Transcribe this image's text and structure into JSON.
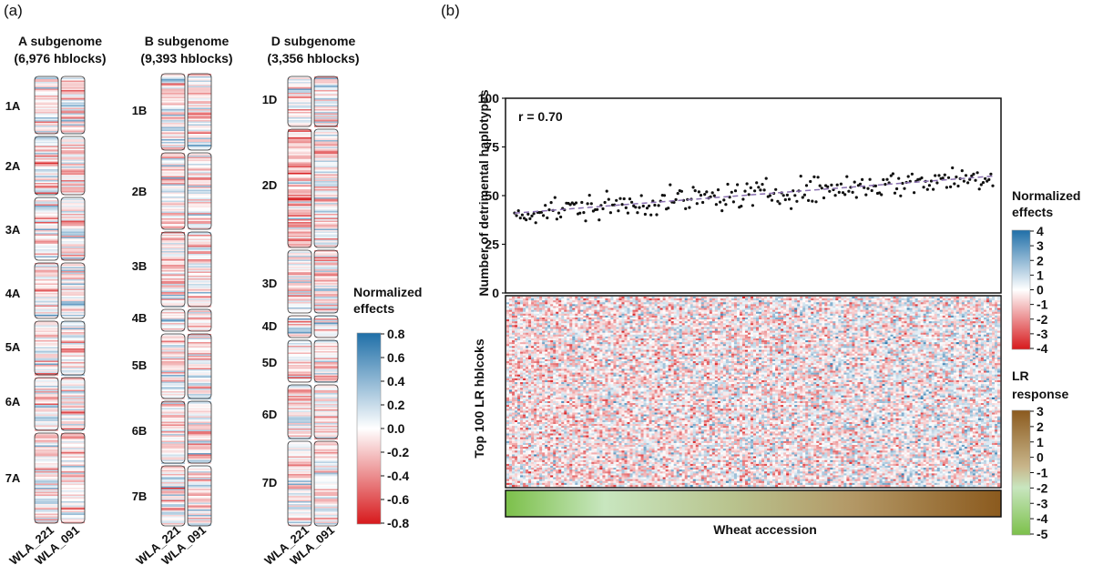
{
  "panel_a": {
    "label": "(a)",
    "subgenomes": [
      {
        "name": "A subgenome",
        "count": "(6,976 hblocks)",
        "chromosomes": [
          "1A",
          "2A",
          "3A",
          "4A",
          "5A",
          "6A",
          "7A"
        ]
      },
      {
        "name": "B subgenome",
        "count": "(9,393 hblocks)",
        "chromosomes": [
          "1B",
          "2B",
          "3B",
          "4B",
          "5B",
          "6B",
          "7B"
        ]
      },
      {
        "name": "D subgenome",
        "count": "(3,356 hblocks)",
        "chromosomes": [
          "1D",
          "2D",
          "3D",
          "4D",
          "5D",
          "6D",
          "7D"
        ]
      }
    ],
    "accessions": [
      "WLA_221",
      "WLA_091"
    ],
    "legend": {
      "title_line1": "Normalized",
      "title_line2": "effects",
      "ticks": [
        "0.8",
        "0.6",
        "0.4",
        "0.2",
        "0.0",
        "-0.2",
        "-0.4",
        "-0.6",
        "-0.8"
      ],
      "colors": {
        "high": "#1f6fa8",
        "mid": "#ffffff",
        "low": "#d7191c"
      }
    }
  },
  "panel_b": {
    "label": "(b)",
    "annotation": "r = 0.70",
    "ylabel_top": "Number of detrimental haplotypes",
    "ylabel_heatmap": "Top 100 LR hblcoks",
    "xlabel": "Wheat accession",
    "legend_effects": {
      "title_line1": "Normalized",
      "title_line2": "effects",
      "ticks": [
        "4",
        "3",
        "2",
        "1",
        "0",
        "-1",
        "-2",
        "-3",
        "-4"
      ]
    },
    "legend_lr": {
      "title_line1": "LR",
      "title_line2": "response",
      "ticks": [
        "3",
        "2",
        "1",
        "0",
        "-1",
        "-2",
        "-3",
        "-4",
        "-5"
      ],
      "colors": {
        "high": "#8b5a1e",
        "mid": "#a8d49a",
        "low": "#7cc04a"
      }
    }
  },
  "chart_data": [
    {
      "type": "heatmap",
      "title": "A subgenome (6,976 hblocks)",
      "columns": [
        "WLA_221",
        "WLA_091"
      ],
      "rows": [
        "1A",
        "2A",
        "3A",
        "4A",
        "5A",
        "6A",
        "7A"
      ],
      "value_range": [
        -0.8,
        0.8
      ]
    },
    {
      "type": "heatmap",
      "title": "B subgenome (9,393 hblocks)",
      "columns": [
        "WLA_221",
        "WLA_091"
      ],
      "rows": [
        "1B",
        "2B",
        "3B",
        "4B",
        "5B",
        "6B",
        "7B"
      ],
      "value_range": [
        -0.8,
        0.8
      ]
    },
    {
      "type": "heatmap",
      "title": "D subgenome (3,356 hblocks)",
      "columns": [
        "WLA_221",
        "WLA_091"
      ],
      "rows": [
        "1D",
        "2D",
        "3D",
        "4D",
        "5D",
        "6D",
        "7D"
      ],
      "value_range": [
        -0.8,
        0.8
      ]
    },
    {
      "type": "scatter",
      "ylabel": "Number of detrimental haplotypes",
      "xlabel": "Wheat accession",
      "ylim": [
        0,
        100
      ],
      "yticks": [
        0,
        25,
        50,
        75,
        100
      ],
      "n_points": 250,
      "trend": {
        "start": 41,
        "end": 60
      },
      "annotation": "r = 0.70",
      "grid": false
    },
    {
      "type": "heatmap",
      "ylabel": "Top 100 LR hblcoks",
      "xlabel": "Wheat accession",
      "rows_count": 100,
      "value_range": [
        -4,
        4
      ]
    },
    {
      "type": "heatmap",
      "title": "LR response",
      "value_range": [
        -5,
        3
      ]
    }
  ]
}
